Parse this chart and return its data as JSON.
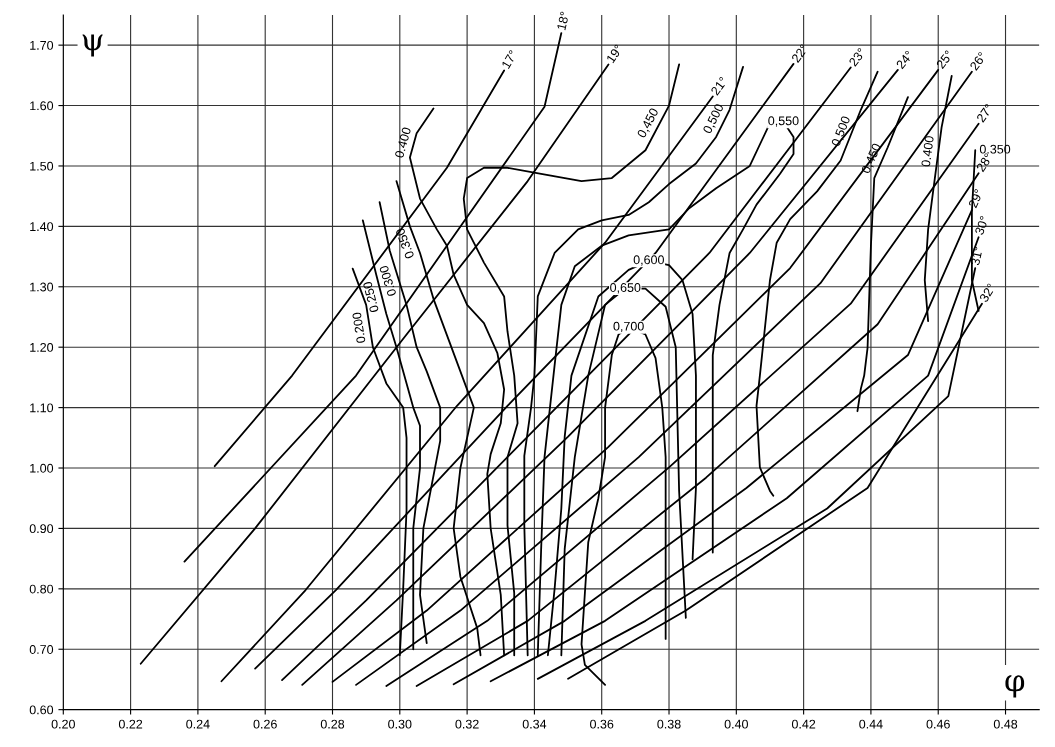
{
  "chart_data": {
    "type": "line",
    "xlabel": "φ",
    "ylabel": "ψ",
    "xlim": [
      0.2,
      0.49
    ],
    "ylim": [
      0.6,
      1.75
    ],
    "xticks": [
      {
        "value": 0.2,
        "label": "0.20"
      },
      {
        "value": 0.22,
        "label": "0.22"
      },
      {
        "value": 0.24,
        "label": "0.24"
      },
      {
        "value": 0.26,
        "label": "0.26"
      },
      {
        "value": 0.28,
        "label": "0.28"
      },
      {
        "value": 0.3,
        "label": "0.30"
      },
      {
        "value": 0.32,
        "label": "0.32"
      },
      {
        "value": 0.34,
        "label": "0.34"
      },
      {
        "value": 0.36,
        "label": "0.36"
      },
      {
        "value": 0.38,
        "label": "0.38"
      },
      {
        "value": 0.4,
        "label": "0.40"
      },
      {
        "value": 0.42,
        "label": "0.42"
      },
      {
        "value": 0.44,
        "label": "0.44"
      },
      {
        "value": 0.46,
        "label": "0.46"
      },
      {
        "value": 0.48,
        "label": "0.48"
      }
    ],
    "yticks": [
      {
        "value": 0.6,
        "label": "0.60"
      },
      {
        "value": 0.7,
        "label": "0.70"
      },
      {
        "value": 0.8,
        "label": "0.80"
      },
      {
        "value": 0.9,
        "label": "0.90"
      },
      {
        "value": 1.0,
        "label": "1.00"
      },
      {
        "value": 1.1,
        "label": "1.10"
      },
      {
        "value": 1.2,
        "label": "1.20"
      },
      {
        "value": 1.3,
        "label": "1.30"
      },
      {
        "value": 1.4,
        "label": "1.40"
      },
      {
        "value": 1.5,
        "label": "1.50"
      },
      {
        "value": 1.6,
        "label": "1.60"
      },
      {
        "value": 1.7,
        "label": "1.70"
      }
    ],
    "grid": true,
    "series": [
      {
        "name": "17°",
        "color": "#000000",
        "x": [
          0.245,
          0.268,
          0.314,
          0.331
        ],
        "values": [
          1.003,
          1.153,
          1.497,
          1.658
        ]
      },
      {
        "name": "18°",
        "color": "#000000",
        "x": [
          0.236,
          0.287,
          0.314,
          0.343,
          0.348
        ],
        "values": [
          0.845,
          1.153,
          1.368,
          1.598,
          1.72
        ]
      },
      {
        "name": "19°",
        "color": "#000000",
        "x": [
          0.223,
          0.257,
          0.302,
          0.338,
          0.362
        ],
        "values": [
          0.676,
          0.9,
          1.221,
          1.475,
          1.668
        ]
      },
      {
        "name": "21°",
        "color": "#000000",
        "x": [
          0.247,
          0.272,
          0.317,
          0.361,
          0.393
        ],
        "values": [
          0.647,
          0.798,
          1.103,
          1.373,
          1.615
        ]
      },
      {
        "name": "22°",
        "color": "#000000",
        "x": [
          0.257,
          0.281,
          0.332,
          0.376,
          0.417
        ],
        "values": [
          0.668,
          0.798,
          1.103,
          1.356,
          1.669
        ]
      },
      {
        "name": "23°",
        "color": "#000000",
        "x": [
          0.265,
          0.29,
          0.341,
          0.392,
          0.434
        ],
        "values": [
          0.649,
          0.781,
          1.069,
          1.356,
          1.663
        ]
      },
      {
        "name": "24°",
        "color": "#000000",
        "x": [
          0.271,
          0.299,
          0.35,
          0.404,
          0.448
        ],
        "values": [
          0.641,
          0.781,
          1.052,
          1.356,
          1.659
        ]
      },
      {
        "name": "25°",
        "color": "#000000",
        "x": [
          0.28,
          0.308,
          0.362,
          0.416,
          0.46
        ],
        "values": [
          0.646,
          0.764,
          1.035,
          1.331,
          1.659
        ]
      },
      {
        "name": "26°",
        "color": "#000000",
        "x": [
          0.287,
          0.318,
          0.371,
          0.425,
          0.47
        ],
        "values": [
          0.641,
          0.764,
          1.018,
          1.306,
          1.656
        ]
      },
      {
        "name": "27°",
        "color": "#000000",
        "x": [
          0.296,
          0.326,
          0.38,
          0.434,
          0.472
        ],
        "values": [
          0.639,
          0.747,
          1.001,
          1.272,
          1.57
        ]
      },
      {
        "name": "28°",
        "color": "#000000",
        "x": [
          0.305,
          0.338,
          0.391,
          0.442,
          0.472
        ],
        "values": [
          0.639,
          0.747,
          0.984,
          1.238,
          1.488
        ]
      },
      {
        "name": "29°",
        "color": "#000000",
        "x": [
          0.316,
          0.349,
          0.403,
          0.451,
          0.47
        ],
        "values": [
          0.642,
          0.747,
          0.967,
          1.187,
          1.427
        ]
      },
      {
        "name": "30°",
        "color": "#000000",
        "x": [
          0.327,
          0.361,
          0.415,
          0.457,
          0.472
        ],
        "values": [
          0.647,
          0.747,
          0.95,
          1.153,
          1.382
        ]
      },
      {
        "name": "31°",
        "color": "#000000",
        "x": [
          0.341,
          0.373,
          0.427,
          0.463,
          0.471
        ],
        "values": [
          0.651,
          0.747,
          0.933,
          1.119,
          1.331
        ]
      },
      {
        "name": "32°",
        "color": "#000000",
        "x": [
          0.35,
          0.385,
          0.439,
          0.473
        ],
        "values": [
          0.651,
          0.764,
          0.967,
          1.272
        ]
      },
      {
        "name": "0.200",
        "color": "#000000",
        "x": [
          0.286,
          0.29,
          0.292,
          0.296,
          0.301,
          0.302,
          0.302,
          0.301,
          0.3
        ],
        "values": [
          1.33,
          1.27,
          1.2,
          1.14,
          1.1,
          1.05,
          0.93,
          0.8,
          0.69
        ]
      },
      {
        "name": "0.250",
        "color": "#000000",
        "x": [
          0.289,
          0.293,
          0.296,
          0.299,
          0.304,
          0.306,
          0.306,
          0.304,
          0.304
        ],
        "values": [
          1.41,
          1.32,
          1.255,
          1.2,
          1.1,
          1.07,
          1.0,
          0.9,
          0.7
        ]
      },
      {
        "name": "0.300",
        "color": "#000000",
        "x": [
          0.294,
          0.297,
          0.302,
          0.305,
          0.308,
          0.312,
          0.312,
          0.307,
          0.306,
          0.308
        ],
        "values": [
          1.44,
          1.36,
          1.27,
          1.2,
          1.16,
          1.1,
          1.045,
          0.9,
          0.79,
          0.71
        ]
      },
      {
        "name": "0.350",
        "color": "#000000",
        "x": [
          0.299,
          0.303,
          0.306,
          0.31,
          0.314,
          0.322,
          0.318,
          0.316,
          0.318,
          0.323,
          0.324
        ],
        "values": [
          1.475,
          1.4,
          1.356,
          1.28,
          1.22,
          1.1,
          1.0,
          0.9,
          0.82,
          0.735,
          0.69
        ]
      },
      {
        "name": "0.400",
        "color": "#000000",
        "x": [
          0.31,
          0.305,
          0.303,
          0.306,
          0.311,
          0.314,
          0.316,
          0.32,
          0.325,
          0.329,
          0.331,
          0.33,
          0.327,
          0.326,
          0.327,
          0.33,
          0.331
        ],
        "values": [
          1.595,
          1.554,
          1.514,
          1.446,
          1.395,
          1.368,
          1.32,
          1.27,
          1.24,
          1.19,
          1.13,
          1.074,
          1.023,
          0.99,
          0.9,
          0.79,
          0.69
        ]
      },
      {
        "name": "0,450",
        "color": "#000000",
        "x": [
          0.383,
          0.38,
          0.373,
          0.363,
          0.354,
          0.342,
          0.332,
          0.325,
          0.32,
          0.319,
          0.32,
          0.325,
          0.331,
          0.332,
          0.334,
          0.335,
          0.332,
          0.332,
          0.334,
          0.334
        ],
        "values": [
          1.668,
          1.6,
          1.526,
          1.48,
          1.475,
          1.487,
          1.497,
          1.497,
          1.48,
          1.446,
          1.395,
          1.34,
          1.284,
          1.226,
          1.153,
          1.074,
          1.018,
          0.905,
          0.793,
          0.69
        ]
      },
      {
        "name": "0,500",
        "color": "#000000",
        "x": [
          0.402,
          0.398,
          0.394,
          0.388,
          0.38,
          0.374,
          0.368,
          0.36,
          0.353,
          0.346,
          0.341,
          0.34,
          0.339,
          0.337,
          0.337,
          0.338
        ],
        "values": [
          1.664,
          1.593,
          1.548,
          1.504,
          1.47,
          1.44,
          1.419,
          1.41,
          1.395,
          1.356,
          1.284,
          1.153,
          1.1,
          1.02,
          0.905,
          0.69
        ]
      },
      {
        "name": "0,550",
        "color": "#000000",
        "x": [
          0.341,
          0.342,
          0.343,
          0.346,
          0.348,
          0.352,
          0.36,
          0.368,
          0.38,
          0.386,
          0.394,
          0.404,
          0.41,
          0.414,
          0.417,
          0.417,
          0.413,
          0.406,
          0.402,
          0.398,
          0.395,
          0.393,
          0.393,
          0.393
        ],
        "values": [
          0.69,
          0.866,
          1.018,
          1.17,
          1.27,
          1.334,
          1.368,
          1.385,
          1.395,
          1.43,
          1.463,
          1.5,
          1.571,
          1.573,
          1.548,
          1.52,
          1.487,
          1.436,
          1.395,
          1.356,
          1.27,
          1.187,
          1.018,
          0.86
        ]
      },
      {
        "name": "0,600",
        "color": "#000000",
        "x": [
          0.344,
          0.346,
          0.348,
          0.349,
          0.351,
          0.359,
          0.368,
          0.374,
          0.38,
          0.384,
          0.387,
          0.388,
          0.388,
          0.387
        ],
        "values": [
          0.69,
          0.8,
          0.933,
          1.052,
          1.153,
          1.284,
          1.328,
          1.343,
          1.336,
          1.311,
          1.255,
          1.153,
          0.967,
          0.849
        ]
      },
      {
        "name": "0,650",
        "color": "#000000",
        "x": [
          0.348,
          0.349,
          0.352,
          0.356,
          0.361,
          0.367,
          0.373,
          0.379,
          0.382,
          0.383,
          0.385
        ],
        "values": [
          0.69,
          0.866,
          1.018,
          1.153,
          1.27,
          1.297,
          1.297,
          1.267,
          1.2,
          0.962,
          0.752
        ]
      },
      {
        "name": "0,700",
        "color": "#000000",
        "x": [
          0.361,
          0.355,
          0.354,
          0.355,
          0.356,
          0.359,
          0.361,
          0.361,
          0.363,
          0.365,
          0.368,
          0.373,
          0.376,
          0.378,
          0.379,
          0.379,
          0.379
        ],
        "values": [
          0.641,
          0.674,
          0.708,
          0.793,
          0.877,
          0.95,
          1.018,
          1.1,
          1.187,
          1.221,
          1.233,
          1.221,
          1.182,
          1.1,
          1.018,
          0.849,
          0.717
        ]
      },
      {
        "name": "0,500",
        "color": "#000000",
        "x": [
          0.442,
          0.437,
          0.431,
          0.424,
          0.416,
          0.412,
          0.41,
          0.407,
          0.406,
          0.407,
          0.41,
          0.411
        ],
        "values": [
          1.656,
          1.593,
          1.509,
          1.458,
          1.412,
          1.373,
          1.311,
          1.153,
          1.103,
          1.001,
          0.962,
          0.954
        ]
      },
      {
        "name": "0,450",
        "color": "#000000",
        "x": [
          0.451,
          0.445,
          0.441,
          0.44,
          0.439,
          0.438,
          0.437,
          0.436
        ],
        "values": [
          1.614,
          1.531,
          1.48,
          1.368,
          1.199,
          1.153,
          1.131,
          1.094
        ]
      },
      {
        "name": "0.400",
        "color": "#000000",
        "x": [
          0.464,
          0.461,
          0.459,
          0.457,
          0.456,
          0.457
        ],
        "values": [
          1.649,
          1.564,
          1.48,
          1.395,
          1.311,
          1.243
        ]
      },
      {
        "name": "0.350",
        "color": "#000000",
        "x": [
          0.471,
          0.47,
          0.47,
          0.472
        ],
        "values": [
          1.526,
          1.424,
          1.311,
          1.26
        ]
      }
    ]
  }
}
